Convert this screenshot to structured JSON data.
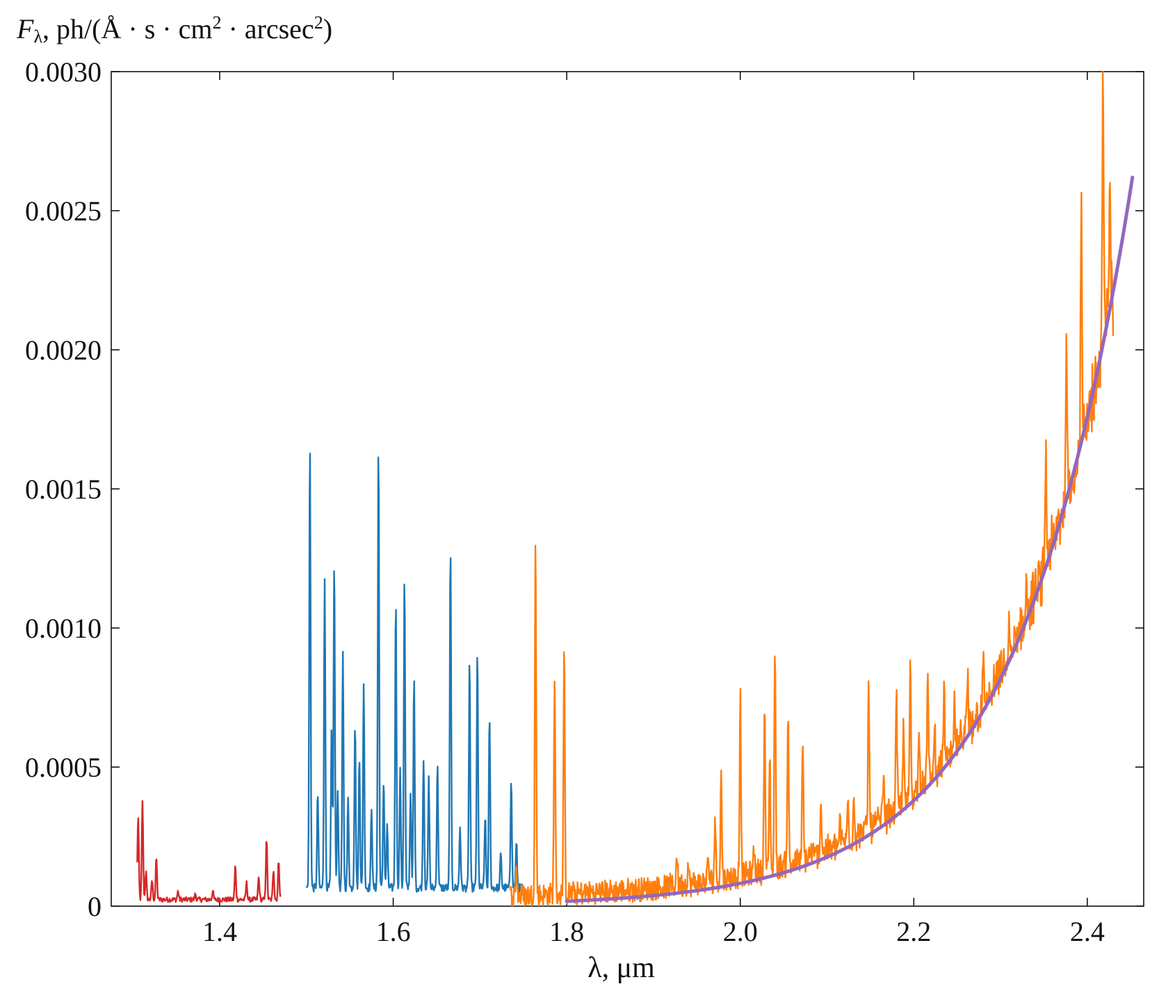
{
  "chart_data": {
    "type": "line",
    "ylabel": {
      "symbol": "F",
      "subscript": "λ",
      "unit_pre": ", ph/(Å · s · cm",
      "sup1": "2",
      "unit_mid": " · arcsec",
      "sup2": "2",
      "unit_post": ")"
    },
    "xlabel": "λ, μm",
    "xlim": [
      1.275,
      2.465
    ],
    "ylim": [
      0,
      0.003
    ],
    "xticks": [
      1.4,
      1.6,
      1.8,
      2.0,
      2.2,
      2.4
    ],
    "xtick_labels": [
      "1.4",
      "1.6",
      "1.8",
      "2.0",
      "2.2",
      "2.4"
    ],
    "yticks": [
      0,
      0.0005,
      0.001,
      0.0015,
      0.002,
      0.0025,
      0.003
    ],
    "ytick_labels": [
      "0",
      "0.0005",
      "0.0010",
      "0.0015",
      "0.0020",
      "0.0025",
      "0.0030"
    ],
    "grid": false,
    "colors": {
      "red": "#d62728",
      "blue": "#1f77b4",
      "orange": "#ff7f0e",
      "purple": "#9467bd"
    },
    "series": [
      {
        "color": "red",
        "x_range": [
          1.305,
          1.47
        ],
        "continuum": 2e-05,
        "noise": 1.8e-05,
        "lines": [
          [
            1.306,
            0.00032
          ],
          [
            1.311,
            0.00037
          ],
          [
            1.315,
            0.00012
          ],
          [
            1.322,
            9e-05
          ],
          [
            1.327,
            0.00017
          ],
          [
            1.352,
            5e-05
          ],
          [
            1.372,
            4e-05
          ],
          [
            1.392,
            5e-05
          ],
          [
            1.418,
            0.00014
          ],
          [
            1.431,
            8e-05
          ],
          [
            1.445,
            0.0001
          ],
          [
            1.454,
            0.00024
          ],
          [
            1.462,
            0.00013
          ],
          [
            1.468,
            0.00016
          ]
        ]
      },
      {
        "color": "blue",
        "x_range": [
          1.5,
          1.75
        ],
        "continuum": 6e-05,
        "noise": 3e-05,
        "lines": [
          [
            1.504,
            0.00167
          ],
          [
            1.513,
            0.0004
          ],
          [
            1.521,
            0.00118
          ],
          [
            1.529,
            0.00063
          ],
          [
            1.532,
            0.00124
          ],
          [
            1.536,
            0.00042
          ],
          [
            1.542,
            0.0009
          ],
          [
            1.548,
            0.00038
          ],
          [
            1.556,
            0.00065
          ],
          [
            1.561,
            0.00054
          ],
          [
            1.566,
            0.0008
          ],
          [
            1.575,
            0.00035
          ],
          [
            1.583,
            0.00166
          ],
          [
            1.589,
            0.00045
          ],
          [
            1.593,
            0.00028
          ],
          [
            1.603,
            0.0011
          ],
          [
            1.608,
            0.00048
          ],
          [
            1.613,
            0.00118
          ],
          [
            1.62,
            0.0004
          ],
          [
            1.624,
            0.00082
          ],
          [
            1.635,
            0.00053
          ],
          [
            1.641,
            0.00045
          ],
          [
            1.651,
            0.0005
          ],
          [
            1.666,
            0.0013
          ],
          [
            1.677,
            0.00028
          ],
          [
            1.688,
            0.00088
          ],
          [
            1.697,
            0.0009
          ],
          [
            1.706,
            0.00032
          ],
          [
            1.711,
            0.00068
          ],
          [
            1.724,
            0.00018
          ],
          [
            1.736,
            0.00046
          ],
          [
            1.742,
            0.00022
          ]
        ]
      },
      {
        "color": "orange",
        "x_range": [
          1.735,
          2.43
        ],
        "continuum_model": "blackbody_scale",
        "noise": 3.5e-05,
        "lines": [
          [
            1.742,
            0.00012
          ],
          [
            1.764,
            0.0013
          ],
          [
            1.786,
            0.00082
          ],
          [
            1.797,
            0.0009
          ],
          [
            1.927,
            0.00018
          ],
          [
            1.94,
            0.00013
          ],
          [
            1.963,
            0.00016
          ],
          [
            1.971,
            0.0003
          ],
          [
            1.978,
            0.00046
          ],
          [
            2.0,
            0.00074
          ],
          [
            2.016,
            0.0002
          ],
          [
            2.028,
            0.00071
          ],
          [
            2.034,
            0.00052
          ],
          [
            2.04,
            0.00092
          ],
          [
            2.055,
            0.00068
          ],
          [
            2.072,
            0.00055
          ],
          [
            2.082,
            0.00018
          ],
          [
            2.093,
            0.00036
          ],
          [
            2.115,
            0.00028
          ],
          [
            2.124,
            0.00036
          ],
          [
            2.131,
            0.00038
          ],
          [
            2.148,
            0.00079
          ],
          [
            2.165,
            0.00045
          ],
          [
            2.18,
            0.00074
          ],
          [
            2.188,
            0.00062
          ],
          [
            2.196,
            0.00085
          ],
          [
            2.206,
            0.00065
          ],
          [
            2.216,
            0.0008
          ],
          [
            2.224,
            0.00062
          ],
          [
            2.235,
            0.00075
          ],
          [
            2.247,
            0.0007
          ],
          [
            2.262,
            0.00079
          ],
          [
            2.28,
            0.00085
          ],
          [
            2.31,
            0.00098
          ],
          [
            2.33,
            0.00118
          ],
          [
            2.352,
            0.0016
          ],
          [
            2.376,
            0.0021
          ],
          [
            2.393,
            0.0025
          ],
          [
            2.418,
            0.003
          ],
          [
            2.426,
            0.0027
          ]
        ]
      },
      {
        "color": "purple",
        "type": "model",
        "x_range": [
          1.8,
          2.452
        ],
        "y_end": 0.00262,
        "y_at_2_2": 0.00038,
        "y_at_2_0": 0.0001
      }
    ]
  }
}
